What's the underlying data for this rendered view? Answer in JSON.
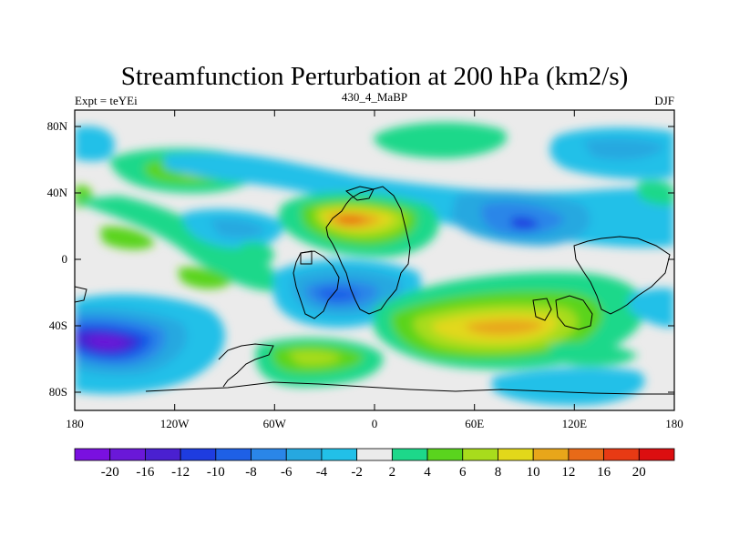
{
  "chart_data": {
    "type": "heatmap",
    "title": "Streamfunction Perturbation at 200 hPa (km2/s)",
    "left_label": "Expt = teYEi",
    "center_label": "430_4_MaBP",
    "right_label": "DJF",
    "x_ticks": [
      "180",
      "120W",
      "60W",
      "0",
      "60E",
      "120E",
      "180"
    ],
    "y_ticks": [
      "80N",
      "40N",
      "0",
      "40S",
      "80S"
    ],
    "xlim": [
      -180,
      180
    ],
    "ylim": [
      -90,
      90
    ],
    "colorbar_labels": [
      "-20",
      "-16",
      "-12",
      "-10",
      "-8",
      "-6",
      "-4",
      "-2",
      "2",
      "4",
      "6",
      "8",
      "10",
      "12",
      "16",
      "20"
    ],
    "colorbar_colors": [
      "#7a10e0",
      "#6a18d8",
      "#4a20d0",
      "#1e3ce0",
      "#1e60e6",
      "#2a86e8",
      "#26a8e0",
      "#22c0e8",
      "#ebebeb",
      "#1dd88a",
      "#5ad41e",
      "#a8dc1c",
      "#e2d81a",
      "#e8a61a",
      "#e86a18",
      "#e83a14",
      "#dc0e10"
    ],
    "features": [
      {
        "name": "negative-center-south-pacific",
        "lon": -148,
        "lat": -50,
        "value": -16
      },
      {
        "name": "negative-center-west-pacific",
        "lon": 90,
        "lat": 22,
        "value": -12
      },
      {
        "name": "negative-center-south-atlantic",
        "lon": -30,
        "lat": -25,
        "value": -10
      },
      {
        "name": "positive-center-north-africa",
        "lon": -15,
        "lat": 24,
        "value": 12
      },
      {
        "name": "positive-center-indian-ocean",
        "lon": 90,
        "lat": -40,
        "value": 10
      },
      {
        "name": "positive-center-north-america",
        "lon": -105,
        "lat": 45,
        "value": 6
      },
      {
        "name": "positive-center-south-america",
        "lon": -90,
        "lat": -12,
        "value": 6
      },
      {
        "name": "positive-center-south-america-east",
        "lon": -47,
        "lat": -60,
        "value": 6
      }
    ]
  }
}
